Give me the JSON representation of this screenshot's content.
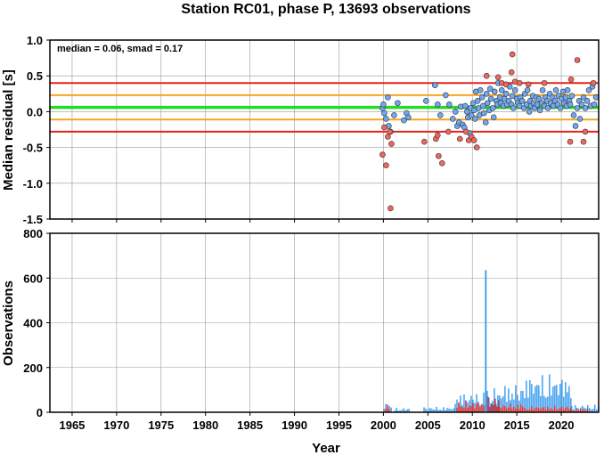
{
  "chart_data": {
    "title": "Station RC01, phase P, 13693 observations",
    "xlabel": "Year",
    "x_ticks": [
      1965,
      1970,
      1975,
      1980,
      1985,
      1990,
      1995,
      2000,
      2005,
      2010,
      2015,
      2020
    ],
    "xlim": [
      1962.5,
      2024.2
    ],
    "grid": true,
    "panels": [
      {
        "type": "scatter",
        "ylabel": "Median residual [s]",
        "ylim": [
          -1.5,
          1.0
        ],
        "y_ticks": [
          1.0,
          0.5,
          0.0,
          -0.5,
          -1.0,
          -1.5
        ],
        "y_tick_labels": [
          "1.0",
          "0.5",
          "0.0",
          "-0.5",
          "-1.0",
          "-1.5"
        ],
        "annotation": "median = 0.06, smad = 0.17",
        "reference_lines": [
          {
            "y": 0.06,
            "color": "#22dd22"
          },
          {
            "y": 0.23,
            "color": "#f5a623"
          },
          {
            "y": -0.11,
            "color": "#f5a623"
          },
          {
            "y": 0.4,
            "color": "#e8221a"
          },
          {
            "y": -0.28,
            "color": "#e8221a"
          }
        ],
        "series": [
          {
            "color": "#6fa8f0",
            "points": [
              [
                1999.9,
                0.05
              ],
              [
                2000.0,
                0.1
              ],
              [
                2000.1,
                -0.02
              ],
              [
                2000.3,
                -0.1
              ],
              [
                2000.5,
                0.2
              ],
              [
                2000.6,
                -0.2
              ],
              [
                2000.8,
                -0.28
              ],
              [
                2001.2,
                -0.05
              ],
              [
                2001.6,
                0.12
              ],
              [
                2002.3,
                -0.12
              ],
              [
                2002.6,
                -0.02
              ],
              [
                2002.8,
                -0.08
              ],
              [
                2004.8,
                0.15
              ],
              [
                2005.8,
                0.37
              ],
              [
                2006.1,
                0.1
              ],
              [
                2006.4,
                -0.05
              ],
              [
                2007.0,
                0.23
              ],
              [
                2007.4,
                0.1
              ],
              [
                2007.8,
                -0.1
              ],
              [
                2008.1,
                0.0
              ],
              [
                2008.3,
                -0.2
              ],
              [
                2008.5,
                -0.15
              ],
              [
                2008.7,
                0.07
              ],
              [
                2008.9,
                -0.18
              ],
              [
                2009.1,
                -0.22
              ],
              [
                2009.2,
                0.08
              ],
              [
                2009.4,
                0.0
              ],
              [
                2009.5,
                -0.08
              ],
              [
                2009.7,
                -0.3
              ],
              [
                2009.8,
                0.05
              ],
              [
                2009.9,
                -0.05
              ],
              [
                2010.1,
                0.12
              ],
              [
                2010.2,
                0.02
              ],
              [
                2010.3,
                -0.1
              ],
              [
                2010.4,
                0.28
              ],
              [
                2010.6,
                0.15
              ],
              [
                2010.7,
                0.05
              ],
              [
                2010.8,
                -0.05
              ],
              [
                2010.9,
                0.3
              ],
              [
                2011.1,
                0.2
              ],
              [
                2011.2,
                0.08
              ],
              [
                2011.3,
                -0.02
              ],
              [
                2011.5,
                -0.15
              ],
              [
                2011.6,
                0.25
              ],
              [
                2011.7,
                0.12
              ],
              [
                2011.9,
                0.02
              ],
              [
                2012.0,
                0.32
              ],
              [
                2012.1,
                0.18
              ],
              [
                2012.3,
                0.05
              ],
              [
                2012.4,
                -0.08
              ],
              [
                2012.5,
                0.28
              ],
              [
                2012.7,
                0.15
              ],
              [
                2012.8,
                0.1
              ],
              [
                2012.9,
                0.4
              ],
              [
                2013.1,
                0.2
              ],
              [
                2013.2,
                0.12
              ],
              [
                2013.3,
                0.3
              ],
              [
                2013.5,
                0.08
              ],
              [
                2013.6,
                0.18
              ],
              [
                2013.8,
                0.25
              ],
              [
                2013.9,
                0.1
              ],
              [
                2014.1,
                0.15
              ],
              [
                2014.2,
                0.35
              ],
              [
                2014.4,
                0.1
              ],
              [
                2014.5,
                0.22
              ],
              [
                2014.6,
                0.05
              ],
              [
                2014.8,
                0.3
              ],
              [
                2015.0,
                0.18
              ],
              [
                2015.1,
                0.12
              ],
              [
                2015.3,
                0.08
              ],
              [
                2015.4,
                0.2
              ],
              [
                2015.6,
                0.15
              ],
              [
                2015.8,
                0.05
              ],
              [
                2015.9,
                0.25
              ],
              [
                2016.1,
                0.1
              ],
              [
                2016.2,
                0.3
              ],
              [
                2016.4,
                0.0
              ],
              [
                2016.5,
                0.15
              ],
              [
                2016.6,
                0.08
              ],
              [
                2016.8,
                0.22
              ],
              [
                2016.9,
                0.12
              ],
              [
                2017.0,
                0.05
              ],
              [
                2017.2,
                0.2
              ],
              [
                2017.3,
                0.1
              ],
              [
                2017.5,
                0.18
              ],
              [
                2017.6,
                0.02
              ],
              [
                2017.8,
                0.12
              ],
              [
                2017.9,
                0.3
              ],
              [
                2018.1,
                0.08
              ],
              [
                2018.2,
                0.2
              ],
              [
                2018.4,
                0.15
              ],
              [
                2018.5,
                0.05
              ],
              [
                2018.7,
                0.25
              ],
              [
                2018.8,
                0.12
              ],
              [
                2019.0,
                0.2
              ],
              [
                2019.1,
                0.08
              ],
              [
                2019.3,
                0.15
              ],
              [
                2019.4,
                0.3
              ],
              [
                2019.6,
                0.1
              ],
              [
                2019.7,
                0.22
              ],
              [
                2019.9,
                0.05
              ],
              [
                2020.0,
                0.18
              ],
              [
                2020.2,
                0.28
              ],
              [
                2020.3,
                0.12
              ],
              [
                2020.5,
                0.2
              ],
              [
                2020.6,
                0.08
              ],
              [
                2020.7,
                0.3
              ],
              [
                2020.9,
                0.15
              ],
              [
                2021.0,
                0.1
              ],
              [
                2021.2,
                0.22
              ],
              [
                2021.4,
                -0.05
              ],
              [
                2021.6,
                -0.2
              ],
              [
                2021.8,
                0.05
              ],
              [
                2022.0,
                0.15
              ],
              [
                2022.1,
                -0.1
              ],
              [
                2022.3,
                0.1
              ],
              [
                2022.5,
                0.2
              ],
              [
                2022.7,
                0.05
              ],
              [
                2022.9,
                0.15
              ],
              [
                2023.1,
                0.3
              ],
              [
                2023.3,
                0.08
              ],
              [
                2023.5,
                0.35
              ],
              [
                2023.7,
                0.1
              ],
              [
                2023.9,
                0.2
              ]
            ]
          },
          {
            "color": "#f0665a",
            "points": [
              [
                1999.9,
                -0.6
              ],
              [
                2000.1,
                -0.22
              ],
              [
                2000.3,
                -0.75
              ],
              [
                2000.5,
                -0.35
              ],
              [
                2000.7,
                -0.28
              ],
              [
                2000.8,
                -1.35
              ],
              [
                2000.9,
                -0.45
              ],
              [
                2004.6,
                -0.42
              ],
              [
                2005.9,
                -0.38
              ],
              [
                2006.1,
                -0.33
              ],
              [
                2006.2,
                -0.62
              ],
              [
                2006.6,
                -0.72
              ],
              [
                2007.3,
                -0.28
              ],
              [
                2008.6,
                -0.38
              ],
              [
                2009.3,
                -0.28
              ],
              [
                2009.6,
                -0.4
              ],
              [
                2009.9,
                -0.35
              ],
              [
                2010.2,
                -0.4
              ],
              [
                2010.5,
                -0.5
              ],
              [
                2011.6,
                0.5
              ],
              [
                2012.9,
                0.48
              ],
              [
                2013.3,
                0.4
              ],
              [
                2013.8,
                0.38
              ],
              [
                2014.4,
                0.55
              ],
              [
                2014.5,
                0.8
              ],
              [
                2014.8,
                0.42
              ],
              [
                2015.3,
                0.4
              ],
              [
                2016.3,
                0.38
              ],
              [
                2018.1,
                0.4
              ],
              [
                2021.0,
                -0.42
              ],
              [
                2021.1,
                0.45
              ],
              [
                2021.8,
                0.72
              ],
              [
                2022.5,
                -0.42
              ],
              [
                2022.7,
                -0.28
              ],
              [
                2023.6,
                0.4
              ]
            ]
          }
        ]
      },
      {
        "type": "bar",
        "ylabel": "Observations",
        "ylim": [
          0,
          800
        ],
        "y_ticks": [
          0,
          200,
          400,
          600,
          800
        ],
        "y_tick_labels": [
          "0",
          "200",
          "400",
          "600",
          "800"
        ],
        "bar_segments": [
          {
            "x": [
              2000.0,
              2001.0
            ],
            "ymax": 45,
            "color": "#3399ee"
          },
          {
            "x": [
              2000.2,
              2000.8
            ],
            "ymax": 35,
            "color": "#e8221a"
          },
          {
            "x": [
              2001.2,
              2003.0
            ],
            "ymax": 20,
            "color": "#3399ee"
          },
          {
            "x": [
              2004.5,
              2008.0
            ],
            "ymax": 25,
            "color": "#3399ee"
          },
          {
            "x": [
              2008.0,
              2011.6
            ],
            "ymax": 90,
            "color": "#3399ee"
          },
          {
            "x": [
              2008.2,
              2011.4
            ],
            "ymax": 50,
            "color": "#e8221a"
          },
          {
            "x": [
              2011.6,
              2013.0
            ],
            "ymax": 110,
            "color": "#3399ee"
          },
          {
            "x": [
              2011.7,
              2013.0
            ],
            "ymax": 70,
            "color": "#e8221a"
          },
          {
            "x": [
              2013.0,
              2016.0
            ],
            "ymax": 130,
            "color": "#3399ee"
          },
          {
            "x": [
              2013.0,
              2016.0
            ],
            "ymax": 40,
            "color": "#e8221a"
          },
          {
            "x": [
              2016.0,
              2021.1
            ],
            "ymax": 175,
            "color": "#3399ee"
          },
          {
            "x": [
              2016.0,
              2021.1
            ],
            "ymax": 30,
            "color": "#e8221a"
          },
          {
            "x": [
              2021.1,
              2024.2
            ],
            "ymax": 35,
            "color": "#3399ee"
          },
          {
            "x": [
              2021.1,
              2023.0
            ],
            "ymax": 18,
            "color": "#e8221a"
          }
        ],
        "spikes": [
          {
            "x": 2011.5,
            "value": 635,
            "color": "#3399ee"
          }
        ]
      }
    ]
  }
}
